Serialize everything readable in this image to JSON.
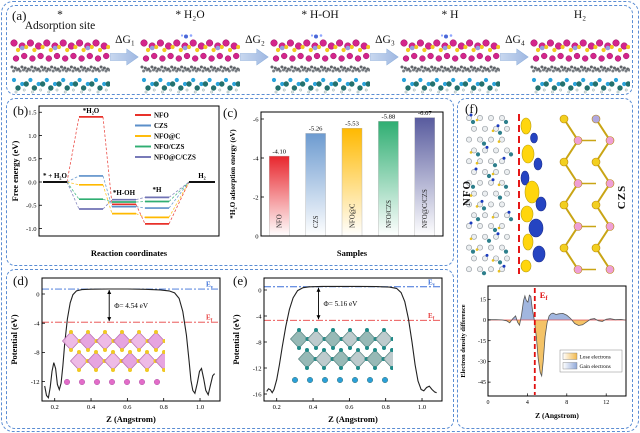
{
  "panels": {
    "a": {
      "label": "(a)",
      "steps": [
        {
          "line1": "*",
          "line2": "Adsorption site"
        },
        {
          "line1": "* H₂O"
        },
        {
          "line1": "* H-OH"
        },
        {
          "line1": "* H"
        },
        {
          "line1": "H₂"
        }
      ],
      "arrows": [
        "ΔG₁",
        "ΔG₂",
        "ΔG₃",
        "ΔG₄"
      ]
    },
    "b": {
      "label": "(b)"
    },
    "c": {
      "label": "(c)"
    },
    "d": {
      "label": "(d)"
    },
    "e": {
      "label": "(e)"
    },
    "f": {
      "label": "(f)",
      "left_material": "NFO",
      "right_material": "CZS"
    }
  },
  "colors": {
    "panel_border": "#5b8dd3",
    "arrow_fill_light": "#c9d8ef",
    "arrow_fill_dark": "#9fb8e2"
  },
  "chart_data": [
    {
      "id": "b",
      "type": "line",
      "xlabel": "Reaction coordinates",
      "ylabel": "Free energy (eV)",
      "yticks": [
        1.5,
        1.0,
        0.5,
        0.0,
        -0.5,
        -1.0
      ],
      "ylim": [
        -1.25,
        1.7
      ],
      "grid": false,
      "legend_position": "top-right",
      "stages": [
        "* + H₂O",
        "*H₂O",
        "*H-OH",
        "*H",
        "H₂"
      ],
      "series": [
        {
          "name": "NFO",
          "color": "#e8312a",
          "values": [
            0,
            1.4,
            -0.48,
            -0.9,
            0
          ]
        },
        {
          "name": "CZS",
          "color": "#5b8fc9",
          "values": [
            0,
            0.13,
            -0.53,
            -0.56,
            0
          ]
        },
        {
          "name": "NFO@C",
          "color": "#ffb900",
          "values": [
            0,
            -0.06,
            -0.68,
            -0.76,
            0
          ]
        },
        {
          "name": "NFO/CZS",
          "color": "#2fae72",
          "values": [
            0,
            -0.37,
            -0.43,
            -0.42,
            0
          ]
        },
        {
          "name": "NFO@C/CZS",
          "color": "#7173b5",
          "values": [
            0,
            -0.58,
            -0.38,
            -0.33,
            0
          ]
        }
      ]
    },
    {
      "id": "c",
      "type": "bar",
      "xlabel": "Samples",
      "ylabel": "*H₂O adsorption energy (eV)",
      "yticks": [
        -6,
        -4,
        -2,
        0
      ],
      "ylim": [
        0,
        -6.6
      ],
      "categories": [
        "NFO",
        "CZS",
        "NFO@C",
        "NFO/CZS",
        "NFO@C/CZS"
      ],
      "values": [
        -4.1,
        -5.26,
        -5.53,
        -5.88,
        -6.07
      ],
      "bar_labels": [
        "-4.10",
        "-5.26",
        "-5.53",
        "-5.88",
        "-6.07"
      ],
      "colors": [
        "#e8262d",
        "#6d9bd0",
        "#ffb900",
        "#2fae72",
        "#585b9e"
      ]
    },
    {
      "id": "d",
      "type": "line",
      "xlabel": "Z (Angstrom)",
      "ylabel": "Potential (eV)",
      "xticks": [
        0.2,
        0.4,
        0.6,
        0.8,
        1.0
      ],
      "yticks": [
        0,
        -4,
        -8,
        -12
      ],
      "work_function_label": "Φ= 4.54 eV",
      "vacuum_label": "Ev",
      "fermi_label": "Ef",
      "vacuum_level": 0.68,
      "fermi_level": -3.86,
      "arrow_z": 0.5,
      "curve": [
        [
          0.145,
          -12.6
        ],
        [
          0.155,
          -13.9
        ],
        [
          0.165,
          -14.2
        ],
        [
          0.175,
          -12.8
        ],
        [
          0.185,
          -10.6
        ],
        [
          0.195,
          -9.4
        ],
        [
          0.205,
          -10.2
        ],
        [
          0.215,
          -12.4
        ],
        [
          0.225,
          -13.1
        ],
        [
          0.235,
          -12.2
        ],
        [
          0.245,
          -9.8
        ],
        [
          0.255,
          -6.8
        ],
        [
          0.27,
          -3.4
        ],
        [
          0.285,
          -1.2
        ],
        [
          0.3,
          -0.1
        ],
        [
          0.32,
          0.42
        ],
        [
          0.35,
          0.6
        ],
        [
          0.4,
          0.66
        ],
        [
          0.5,
          0.68
        ],
        [
          0.6,
          0.68
        ],
        [
          0.7,
          0.64
        ],
        [
          0.78,
          0.56
        ],
        [
          0.83,
          0.42
        ],
        [
          0.86,
          0.15
        ],
        [
          0.885,
          -0.6
        ],
        [
          0.905,
          -2.4
        ],
        [
          0.925,
          -5.6
        ],
        [
          0.94,
          -9.2
        ],
        [
          0.95,
          -11.8
        ],
        [
          0.96,
          -13.2
        ],
        [
          0.972,
          -13.6
        ],
        [
          0.985,
          -12.2
        ],
        [
          0.997,
          -10.6
        ],
        [
          1.008,
          -10.2
        ],
        [
          1.02,
          -11.6
        ],
        [
          1.032,
          -13.2
        ],
        [
          1.045,
          -13.8
        ],
        [
          1.058,
          -12.4
        ],
        [
          1.07,
          -11.2
        ],
        [
          1.08,
          -10.9
        ]
      ]
    },
    {
      "id": "e",
      "type": "line",
      "xlabel": "Z (Angstrom)",
      "ylabel": "Potential (eV)",
      "xticks": [
        0.2,
        0.4,
        0.6,
        0.8,
        1.0
      ],
      "yticks": [
        0,
        -4,
        -8,
        -12,
        -16
      ],
      "work_function_label": "Φ= 5.16 eV",
      "vacuum_label": "Ev",
      "fermi_label": "Ef",
      "vacuum_level": 0.5,
      "fermi_level": -4.66,
      "arrow_z": 0.43,
      "curve": [
        [
          0.145,
          -15.6
        ],
        [
          0.155,
          -15.2
        ],
        [
          0.165,
          -15.35
        ],
        [
          0.175,
          -15.8
        ],
        [
          0.185,
          -15.3
        ],
        [
          0.2,
          -13.8
        ],
        [
          0.215,
          -11.5
        ],
        [
          0.23,
          -8.8
        ],
        [
          0.25,
          -5.6
        ],
        [
          0.27,
          -3.0
        ],
        [
          0.29,
          -1.2
        ],
        [
          0.315,
          -0.1
        ],
        [
          0.345,
          0.35
        ],
        [
          0.38,
          0.5
        ],
        [
          0.45,
          0.55
        ],
        [
          0.55,
          0.56
        ],
        [
          0.65,
          0.55
        ],
        [
          0.75,
          0.52
        ],
        [
          0.82,
          0.45
        ],
        [
          0.86,
          0.25
        ],
        [
          0.885,
          -0.4
        ],
        [
          0.905,
          -1.8
        ],
        [
          0.925,
          -4.4
        ],
        [
          0.945,
          -8.0
        ],
        [
          0.962,
          -11.5
        ],
        [
          0.978,
          -14.0
        ],
        [
          0.995,
          -15.3
        ],
        [
          1.01,
          -15.5
        ],
        [
          1.025,
          -15.0
        ],
        [
          1.04,
          -14.8
        ],
        [
          1.055,
          -15.3
        ],
        [
          1.07,
          -15.7
        ],
        [
          1.08,
          -15.8
        ]
      ]
    },
    {
      "id": "f",
      "type": "area",
      "xlabel": "Z (Angstrom)",
      "ylabel": "Electron density difference",
      "xticks": [
        0,
        4,
        8,
        12
      ],
      "yticks": [
        15,
        0,
        -15,
        -30,
        -45
      ],
      "interface_label": "Ef",
      "interface_z": 4.75,
      "legend": [
        {
          "label": "Lose electrons",
          "color": "#f2b94c"
        },
        {
          "label": "Gain electrons",
          "color": "#90a9d9"
        }
      ],
      "curve": [
        [
          0,
          0.2
        ],
        [
          0.8,
          0.3
        ],
        [
          1.4,
          0.1
        ],
        [
          1.9,
          -0.6
        ],
        [
          2.2,
          -2.0
        ],
        [
          2.5,
          0.8
        ],
        [
          2.8,
          3.0
        ],
        [
          3.0,
          -1.5
        ],
        [
          3.2,
          -3.8
        ],
        [
          3.4,
          3.5
        ],
        [
          3.6,
          14.0
        ],
        [
          3.75,
          17.5
        ],
        [
          3.9,
          14.0
        ],
        [
          4.05,
          13.0
        ],
        [
          4.2,
          18.0
        ],
        [
          4.35,
          17.0
        ],
        [
          4.5,
          8.0
        ],
        [
          4.7,
          0.0
        ],
        [
          4.9,
          -12.0
        ],
        [
          5.1,
          -28.0
        ],
        [
          5.3,
          -38.0
        ],
        [
          5.45,
          -40.5
        ],
        [
          5.6,
          -30.0
        ],
        [
          5.8,
          -12.0
        ],
        [
          6.0,
          -2.0
        ],
        [
          6.2,
          3.0
        ],
        [
          6.4,
          4.5
        ],
        [
          6.6,
          5.0
        ],
        [
          6.9,
          4.0
        ],
        [
          7.2,
          4.5
        ],
        [
          7.6,
          4.8
        ],
        [
          8.0,
          3.5
        ],
        [
          8.4,
          1.0
        ],
        [
          8.8,
          -2.5
        ],
        [
          9.2,
          -4.0
        ],
        [
          9.6,
          -3.5
        ],
        [
          10.0,
          -1.5
        ],
        [
          10.4,
          0.5
        ],
        [
          10.8,
          1.0
        ],
        [
          11.2,
          -0.5
        ],
        [
          11.6,
          -1.0
        ],
        [
          12.0,
          0.5
        ],
        [
          12.4,
          1.0
        ],
        [
          12.9,
          0.2
        ],
        [
          13.5,
          0.4
        ],
        [
          13.9,
          0.0
        ]
      ]
    }
  ]
}
